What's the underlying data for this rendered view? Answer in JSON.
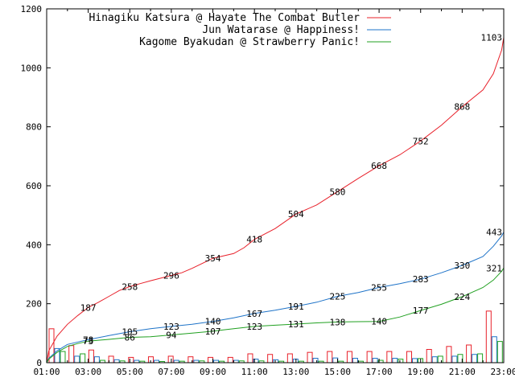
{
  "chart_data": {
    "type": "line",
    "title": "",
    "xlabel": "",
    "ylabel": "",
    "x_tick_labels": [
      "01:00",
      "03:00",
      "05:00",
      "07:00",
      "09:00",
      "11:00",
      "13:00",
      "15:00",
      "17:00",
      "19:00",
      "21:00",
      "23:00"
    ],
    "y_ticks": [
      0,
      200,
      400,
      600,
      800,
      1000,
      1200
    ],
    "xlim": [
      1,
      23
    ],
    "ylim": [
      0,
      1200
    ],
    "grid": false,
    "legend_position": "top-right",
    "series": [
      {
        "name": "Hinagiku Katsura @ Hayate The Combat Butler",
        "color": "#e8202a",
        "cumulative": [
          [
            1.0,
            0
          ],
          [
            1.1,
            40
          ],
          [
            1.5,
            90
          ],
          [
            2.0,
            130
          ],
          [
            2.5,
            160
          ],
          [
            3.0,
            187
          ],
          [
            3.5,
            205
          ],
          [
            4.0,
            225
          ],
          [
            4.5,
            245
          ],
          [
            5.0,
            258
          ],
          [
            5.5,
            268
          ],
          [
            6.0,
            278
          ],
          [
            7.0,
            296
          ],
          [
            7.5,
            305
          ],
          [
            8.0,
            320
          ],
          [
            9.0,
            354
          ],
          [
            10.0,
            370
          ],
          [
            10.5,
            390
          ],
          [
            11.0,
            418
          ],
          [
            12.0,
            455
          ],
          [
            13.0,
            504
          ],
          [
            14.0,
            535
          ],
          [
            15.0,
            580
          ],
          [
            16.0,
            625
          ],
          [
            17.0,
            668
          ],
          [
            18.0,
            705
          ],
          [
            19.0,
            752
          ],
          [
            20.0,
            805
          ],
          [
            21.0,
            868
          ],
          [
            22.0,
            925
          ],
          [
            22.5,
            980
          ],
          [
            22.9,
            1060
          ],
          [
            23.0,
            1103
          ]
        ],
        "point_labels": [
          [
            3.0,
            187,
            "187"
          ],
          [
            5.0,
            258,
            "258"
          ],
          [
            7.0,
            296,
            "296"
          ],
          [
            9.0,
            354,
            "354"
          ],
          [
            11.0,
            418,
            "418"
          ],
          [
            13.0,
            504,
            "504"
          ],
          [
            15.0,
            580,
            "580"
          ],
          [
            17.0,
            668,
            "668"
          ],
          [
            19.0,
            752,
            "752"
          ],
          [
            21.0,
            868,
            "868"
          ],
          [
            23.0,
            1103,
            "1103"
          ]
        ],
        "hourly": [
          115,
          58,
          43,
          22,
          18,
          20,
          22,
          20,
          18,
          18,
          30,
          28,
          30,
          35,
          38,
          38,
          38,
          38,
          38,
          45,
          55,
          60,
          175
        ]
      },
      {
        "name": "Jun Watarase @ Happiness!",
        "color": "#1e73c8",
        "cumulative": [
          [
            1.0,
            0
          ],
          [
            1.1,
            15
          ],
          [
            1.5,
            40
          ],
          [
            2.0,
            62
          ],
          [
            2.5,
            70
          ],
          [
            3.0,
            78
          ],
          [
            4.0,
            92
          ],
          [
            5.0,
            105
          ],
          [
            6.0,
            115
          ],
          [
            7.0,
            123
          ],
          [
            8.0,
            130
          ],
          [
            9.0,
            140
          ],
          [
            10.0,
            152
          ],
          [
            11.0,
            167
          ],
          [
            12.0,
            178
          ],
          [
            13.0,
            191
          ],
          [
            14.0,
            205
          ],
          [
            15.0,
            225
          ],
          [
            16.0,
            238
          ],
          [
            17.0,
            255
          ],
          [
            18.0,
            268
          ],
          [
            19.0,
            283
          ],
          [
            20.0,
            305
          ],
          [
            21.0,
            330
          ],
          [
            22.0,
            360
          ],
          [
            22.5,
            395
          ],
          [
            22.9,
            430
          ],
          [
            23.0,
            443
          ]
        ],
        "point_labels": [
          [
            3.0,
            78,
            "78"
          ],
          [
            5.0,
            105,
            "105"
          ],
          [
            7.0,
            123,
            "123"
          ],
          [
            9.0,
            140,
            "140"
          ],
          [
            11.0,
            167,
            "167"
          ],
          [
            13.0,
            191,
            "191"
          ],
          [
            15.0,
            225,
            "225"
          ],
          [
            17.0,
            255,
            "255"
          ],
          [
            19.0,
            283,
            "283"
          ],
          [
            21.0,
            330,
            "330"
          ],
          [
            23.0,
            443,
            "443"
          ]
        ],
        "hourly": [
          48,
          22,
          20,
          10,
          8,
          8,
          8,
          8,
          8,
          8,
          12,
          10,
          12,
          15,
          16,
          15,
          15,
          15,
          14,
          20,
          22,
          28,
          88
        ]
      },
      {
        "name": "Kagome Byakudan @ Strawberry Panic!",
        "color": "#20a020",
        "cumulative": [
          [
            1.0,
            0
          ],
          [
            1.1,
            12
          ],
          [
            1.5,
            35
          ],
          [
            2.0,
            55
          ],
          [
            2.5,
            65
          ],
          [
            3.0,
            73
          ],
          [
            4.0,
            79
          ],
          [
            5.0,
            86
          ],
          [
            6.0,
            88
          ],
          [
            7.0,
            94
          ],
          [
            8.0,
            100
          ],
          [
            9.0,
            107
          ],
          [
            10.0,
            115
          ],
          [
            11.0,
            123
          ],
          [
            12.0,
            127
          ],
          [
            13.0,
            131
          ],
          [
            14.0,
            135
          ],
          [
            15.0,
            138
          ],
          [
            16.0,
            139
          ],
          [
            17.0,
            140
          ],
          [
            18.0,
            155
          ],
          [
            19.0,
            177
          ],
          [
            20.0,
            198
          ],
          [
            21.0,
            224
          ],
          [
            22.0,
            255
          ],
          [
            22.5,
            280
          ],
          [
            22.9,
            310
          ],
          [
            23.0,
            321
          ]
        ],
        "point_labels": [
          [
            3.0,
            73,
            "73"
          ],
          [
            5.0,
            86,
            "86"
          ],
          [
            7.0,
            94,
            "94"
          ],
          [
            9.0,
            107,
            "107"
          ],
          [
            11.0,
            123,
            "123"
          ],
          [
            13.0,
            131,
            "131"
          ],
          [
            15.0,
            138,
            "138"
          ],
          [
            17.0,
            140,
            "140"
          ],
          [
            19.0,
            177,
            "177"
          ],
          [
            21.0,
            224,
            "224"
          ],
          [
            23.0,
            321,
            "321"
          ]
        ],
        "hourly": [
          38,
          30,
          8,
          6,
          5,
          4,
          5,
          6,
          5,
          6,
          6,
          5,
          5,
          5,
          5,
          5,
          8,
          12,
          14,
          22,
          28,
          30,
          72
        ]
      }
    ]
  }
}
